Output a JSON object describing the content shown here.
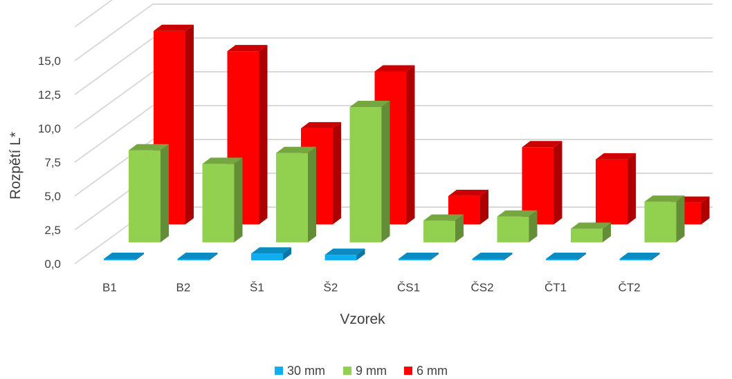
{
  "chart_data": {
    "type": "bar",
    "subtype": "3d-column",
    "xlabel": "Vzorek",
    "ylabel": "Rozpětí L*",
    "categories": [
      "B1",
      "B2",
      "Š1",
      "Š2",
      "ČS1",
      "ČS2",
      "ČT1",
      "ČT2"
    ],
    "yticks": [
      "0,0",
      "2,5",
      "5,0",
      "7,5",
      "10,0",
      "12,5",
      "15,0"
    ],
    "ylim": [
      0,
      17.5
    ],
    "grid": true,
    "legend_position": "bottom",
    "series": [
      {
        "name": "30 mm",
        "color": "#0eaef0",
        "values": [
          0.1,
          0.1,
          0.5,
          0.4,
          0.1,
          0.1,
          0.1,
          0.1
        ]
      },
      {
        "name": "9 mm",
        "color": "#92d050",
        "values": [
          6.8,
          5.8,
          6.6,
          10.0,
          1.6,
          1.9,
          1.0,
          3.0
        ]
      },
      {
        "name": "6 mm",
        "color": "#ff0000",
        "values": [
          14.3,
          12.8,
          7.1,
          11.3,
          2.1,
          5.7,
          4.8,
          1.6
        ]
      }
    ]
  }
}
